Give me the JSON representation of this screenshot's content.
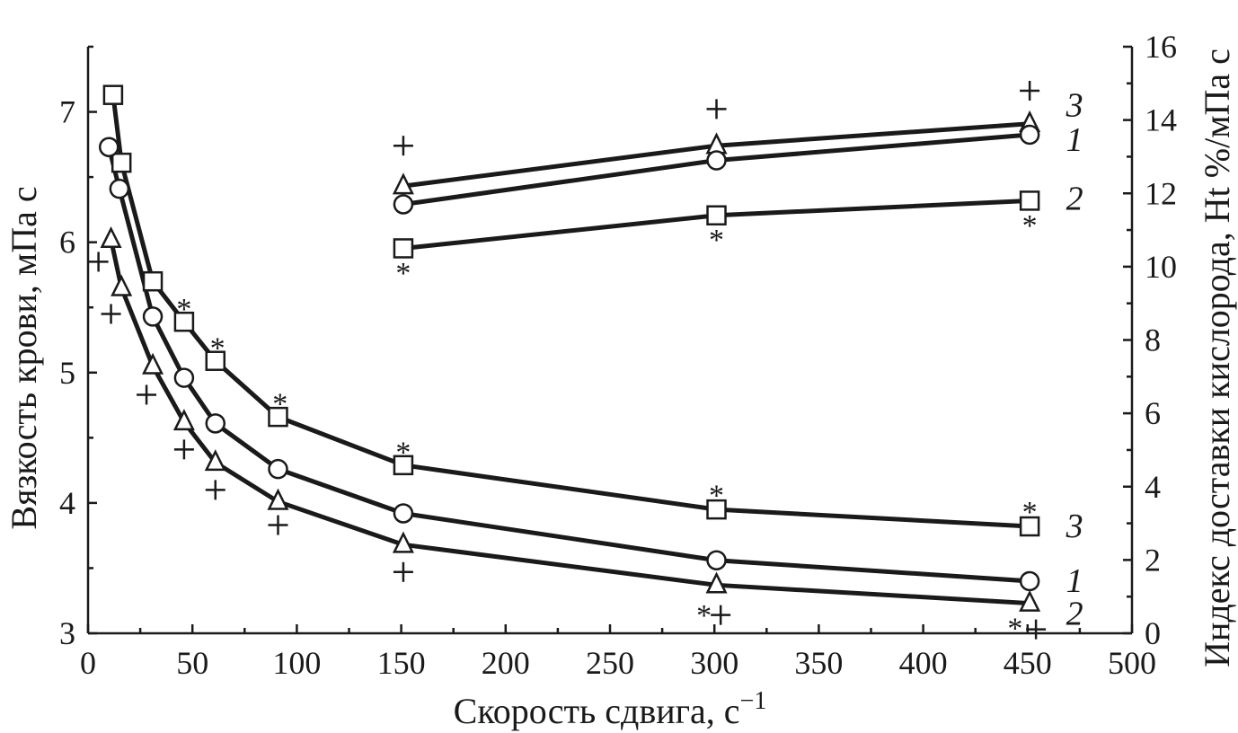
{
  "chart_data": {
    "type": "line",
    "xlabel": "Скорость сдвига, с",
    "xlabel_sup": "−1",
    "ylabel": "Вязкость крови, мПа с",
    "y2label": "Индекс доставки кислорода, Ht %/мПа с",
    "xlim": [
      0,
      500
    ],
    "ylim": [
      3,
      7.5
    ],
    "y2lim": [
      0,
      16
    ],
    "x_ticks": [
      0,
      50,
      100,
      150,
      200,
      250,
      300,
      350,
      400,
      450,
      500
    ],
    "x_tick_labels": [
      "0",
      "50",
      "100",
      "150",
      "200",
      "250",
      "300",
      "350",
      "400",
      "450",
      "500"
    ],
    "y_ticks": [
      3,
      4,
      5,
      6,
      7
    ],
    "y_tick_labels": [
      "3",
      "4",
      "5",
      "6",
      "7"
    ],
    "y2_ticks": [
      0,
      2,
      4,
      6,
      8,
      10,
      12,
      14,
      16
    ],
    "y2_tick_labels": [
      "0",
      "2",
      "4",
      "6",
      "8",
      "10",
      "12",
      "14",
      "16"
    ],
    "viscosity_series": [
      {
        "name": "3",
        "marker": "square",
        "axis": "left",
        "x": [
          12,
          16,
          31,
          46,
          61,
          91,
          151,
          301,
          451
        ],
        "y": [
          7.13,
          6.61,
          5.7,
          5.39,
          5.09,
          4.66,
          4.29,
          3.95,
          3.82
        ]
      },
      {
        "name": "1",
        "marker": "circle",
        "axis": "left",
        "x": [
          10,
          15,
          31,
          46,
          61,
          91,
          151,
          301,
          451
        ],
        "y": [
          6.73,
          6.41,
          5.43,
          4.96,
          4.61,
          4.26,
          3.92,
          3.56,
          3.4
        ]
      },
      {
        "name": "2",
        "marker": "triangle",
        "axis": "left",
        "x": [
          11,
          16,
          31,
          46,
          61,
          91,
          151,
          301,
          451
        ],
        "y": [
          6.02,
          5.65,
          5.05,
          4.62,
          4.31,
          4.01,
          3.68,
          3.37,
          3.23
        ]
      }
    ],
    "oxygen_series": [
      {
        "name": "3",
        "marker": "triangle",
        "axis": "right",
        "x": [
          151,
          301,
          451
        ],
        "y": [
          12.2,
          13.3,
          13.9
        ]
      },
      {
        "name": "1",
        "marker": "circle",
        "axis": "right",
        "x": [
          151,
          301,
          451
        ],
        "y": [
          11.7,
          12.9,
          13.6
        ]
      },
      {
        "name": "2",
        "marker": "square",
        "axis": "right",
        "x": [
          151,
          301,
          451
        ],
        "y": [
          10.5,
          11.4,
          11.8
        ]
      }
    ],
    "plus_markers": {
      "axis": "left",
      "points": [
        [
          5,
          5.85
        ],
        [
          11,
          5.45
        ],
        [
          28,
          4.83
        ],
        [
          46,
          4.41
        ],
        [
          61,
          4.1
        ],
        [
          91,
          3.83
        ],
        [
          151,
          3.47
        ],
        [
          303,
          3.14
        ],
        [
          454,
          3.03
        ]
      ]
    },
    "plus_markers_right": {
      "axis": "right",
      "points": [
        [
          151,
          13.3
        ],
        [
          301,
          14.3
        ],
        [
          451,
          14.8
        ]
      ]
    },
    "significance_markers": {
      "symbol": "*",
      "left_axis_points": [
        [
          46,
          5.51
        ],
        [
          62,
          5.21
        ],
        [
          92,
          4.78
        ],
        [
          151,
          4.41
        ],
        [
          301,
          4.08
        ],
        [
          451,
          3.95
        ],
        [
          295,
          3.16
        ],
        [
          444,
          3.06
        ]
      ],
      "right_axis_points": [
        [
          151,
          9.9
        ],
        [
          301,
          10.8
        ],
        [
          451,
          11.2
        ]
      ]
    },
    "curve_labels": {
      "right_upper": [
        "3",
        "1",
        "2"
      ],
      "right_lower": [
        "3",
        "1",
        "2"
      ]
    }
  }
}
